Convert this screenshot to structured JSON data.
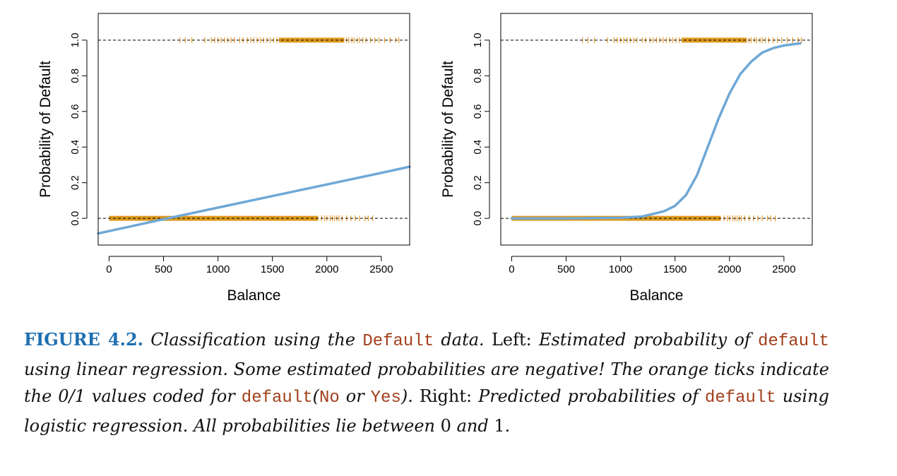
{
  "chart_data": [
    {
      "type": "line",
      "xlabel": "Balance",
      "ylabel": "Probability of Default",
      "xlim": [
        -100,
        2760
      ],
      "ylim": [
        -0.15,
        1.15
      ],
      "xticks": [
        0,
        500,
        1000,
        1500,
        2000,
        2500
      ],
      "yticks": [
        0.0,
        0.2,
        0.4,
        0.6,
        0.8,
        1.0
      ],
      "ytick_labels": [
        "0.0",
        "0.2",
        "0.4",
        "0.6",
        "0.8",
        "1.0"
      ],
      "reference_lines": [
        0,
        1
      ],
      "series": [
        {
          "x": [
            -100,
            500,
            1000,
            1500,
            2000,
            2500,
            2760
          ],
          "y": [
            -0.085,
            -0.005,
            0.06,
            0.125,
            0.19,
            0.255,
            0.29
          ]
        }
      ],
      "rug": {
        "y0_range": [
          0,
          1920
        ],
        "y0_sparse": [
          1950,
          1980,
          2000,
          2030,
          2050,
          2070,
          2090,
          2110,
          2140,
          2180,
          2220,
          2260,
          2300,
          2350,
          2380,
          2420
        ],
        "y1_range": [
          1560,
          2160
        ],
        "y1_sparse": [
          650,
          700,
          760,
          880,
          940,
          970,
          1000,
          1030,
          1060,
          1090,
          1120,
          1150,
          1200,
          1230,
          1270,
          1300,
          1330,
          1360,
          1390,
          1420,
          1450,
          1480,
          1510,
          1540,
          2180,
          2200,
          2230,
          2250,
          2280,
          2300,
          2330,
          2360,
          2400,
          2440,
          2480,
          2530,
          2580,
          2630,
          2660
        ]
      }
    },
    {
      "type": "line",
      "xlabel": "Balance",
      "ylabel": "Probability of Default",
      "xlim": [
        -100,
        2760
      ],
      "ylim": [
        -0.15,
        1.15
      ],
      "xticks": [
        0,
        500,
        1000,
        1500,
        2000,
        2500
      ],
      "yticks": [
        0.0,
        0.2,
        0.4,
        0.6,
        0.8,
        1.0
      ],
      "ytick_labels": [
        "0.0",
        "0.2",
        "0.4",
        "0.6",
        "0.8",
        "1.0"
      ],
      "reference_lines": [
        0,
        1
      ],
      "series": [
        {
          "x": [
            0,
            500,
            1000,
            1200,
            1400,
            1500,
            1600,
            1700,
            1800,
            1900,
            2000,
            2100,
            2200,
            2300,
            2400,
            2500,
            2650
          ],
          "y": [
            0.0,
            0.0,
            0.003,
            0.01,
            0.04,
            0.07,
            0.13,
            0.24,
            0.4,
            0.56,
            0.7,
            0.81,
            0.88,
            0.93,
            0.955,
            0.97,
            0.982
          ]
        }
      ],
      "rug": {
        "y0_range": [
          0,
          1920
        ],
        "y0_sparse": [
          1950,
          1980,
          2000,
          2030,
          2050,
          2070,
          2090,
          2110,
          2140,
          2180,
          2220,
          2260,
          2300,
          2350,
          2380,
          2420
        ],
        "y1_range": [
          1560,
          2160
        ],
        "y1_sparse": [
          650,
          700,
          760,
          880,
          940,
          970,
          1000,
          1030,
          1060,
          1090,
          1120,
          1150,
          1200,
          1230,
          1270,
          1300,
          1330,
          1360,
          1390,
          1420,
          1450,
          1480,
          1510,
          1540,
          2180,
          2200,
          2230,
          2250,
          2280,
          2300,
          2330,
          2360,
          2400,
          2440,
          2480,
          2530,
          2580,
          2630,
          2660
        ]
      }
    }
  ],
  "colors": {
    "line": "#6fa8d6",
    "rug": "#e8a33c",
    "rug_dense": "#dd9a1e",
    "axis": "#000000",
    "figure_label": "#1f6fb0",
    "code": "#a2401c"
  },
  "caption": {
    "label": "FIGURE 4.2.",
    "t1": "Classification using the",
    "c1": "Default",
    "t2": "data.",
    "r1": "Left:",
    "t3": "Estimated probability of",
    "c2": "default",
    "t4": "using linear regression. Some estimated probabilities are negative! The orange ticks indicate the 0/1 values coded for",
    "c3": "default",
    "t5": "(",
    "c4": "No",
    "t6": "or",
    "c5": "Yes",
    "t7": ").",
    "r2": "Right:",
    "t8": "Predicted probabilities of",
    "c6": "default",
    "t9": "using logistic regression. All probabilities lie between",
    "r3": "0",
    "t10": "and",
    "r4": "1",
    "t11": "."
  }
}
